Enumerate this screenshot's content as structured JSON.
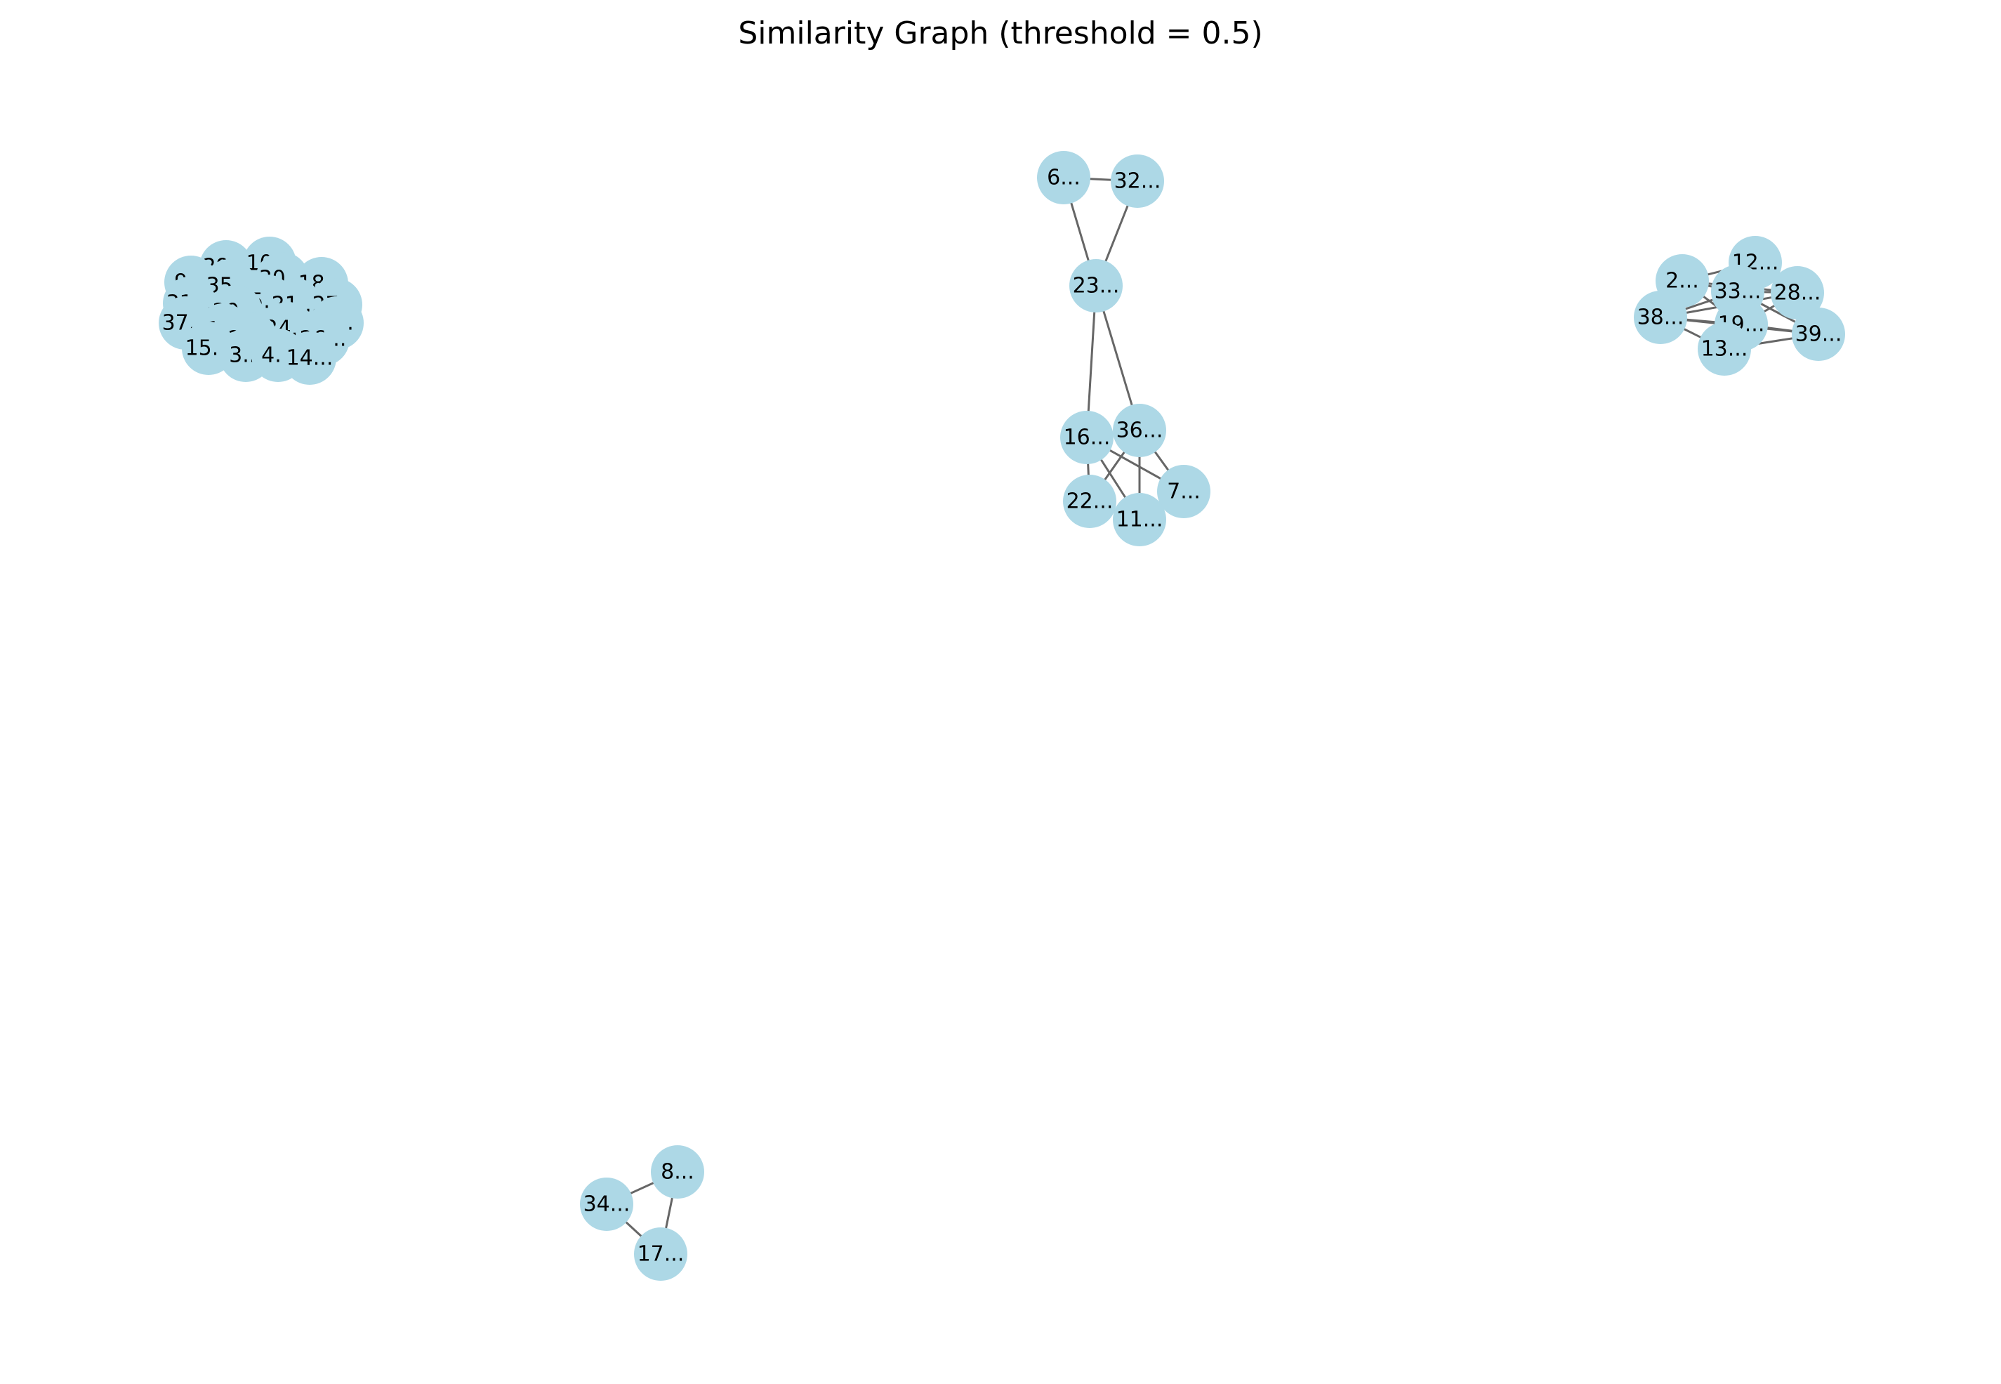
{
  "title": "Similarity Graph (threshold = 0.5)",
  "colors": {
    "node_fill": "#add8e6",
    "edge": "#666666",
    "label": "#000000",
    "background": "#ffffff"
  },
  "nodes": [
    {
      "id": "n29",
      "label": "29..."
    },
    {
      "id": "n10",
      "label": "10..."
    },
    {
      "id": "n9",
      "label": "9..."
    },
    {
      "id": "n35",
      "label": "35..."
    },
    {
      "id": "n30",
      "label": "30..."
    },
    {
      "id": "n18",
      "label": "18..."
    },
    {
      "id": "n5",
      "label": "5..."
    },
    {
      "id": "n31",
      "label": "31..."
    },
    {
      "id": "n20",
      "label": "20..."
    },
    {
      "id": "n21",
      "label": "21..."
    },
    {
      "id": "n27",
      "label": "27..."
    },
    {
      "id": "n37",
      "label": "37..."
    },
    {
      "id": "n1",
      "label": "1..."
    },
    {
      "id": "n24",
      "label": "24..."
    },
    {
      "id": "n0",
      "label": "0..."
    },
    {
      "id": "n25",
      "label": "25..."
    },
    {
      "id": "n26",
      "label": "26..."
    },
    {
      "id": "n15",
      "label": "15..."
    },
    {
      "id": "n3",
      "label": "3..."
    },
    {
      "id": "n4",
      "label": "4..."
    },
    {
      "id": "n14",
      "label": "14..."
    },
    {
      "id": "n6",
      "label": "6..."
    },
    {
      "id": "n32",
      "label": "32..."
    },
    {
      "id": "n23",
      "label": "23..."
    },
    {
      "id": "n16",
      "label": "16..."
    },
    {
      "id": "n36",
      "label": "36..."
    },
    {
      "id": "n7",
      "label": "7..."
    },
    {
      "id": "n22",
      "label": "22..."
    },
    {
      "id": "n11",
      "label": "11..."
    },
    {
      "id": "n12",
      "label": "12..."
    },
    {
      "id": "n2",
      "label": "2..."
    },
    {
      "id": "n33",
      "label": "33..."
    },
    {
      "id": "n28",
      "label": "28..."
    },
    {
      "id": "n38",
      "label": "38..."
    },
    {
      "id": "n19",
      "label": "19..."
    },
    {
      "id": "n39",
      "label": "39..."
    },
    {
      "id": "n13",
      "label": "13..."
    },
    {
      "id": "n8",
      "label": "8..."
    },
    {
      "id": "n34",
      "label": "34..."
    },
    {
      "id": "n17",
      "label": "17..."
    }
  ],
  "edges": [
    [
      "n6",
      "n32"
    ],
    [
      "n6",
      "n23"
    ],
    [
      "n32",
      "n23"
    ],
    [
      "n23",
      "n16"
    ],
    [
      "n23",
      "n36"
    ],
    [
      "n16",
      "n36"
    ],
    [
      "n16",
      "n22"
    ],
    [
      "n16",
      "n11"
    ],
    [
      "n16",
      "n7"
    ],
    [
      "n36",
      "n22"
    ],
    [
      "n36",
      "n11"
    ],
    [
      "n36",
      "n7"
    ],
    [
      "n22",
      "n11"
    ],
    [
      "n7",
      "n11"
    ],
    [
      "n12",
      "n2"
    ],
    [
      "n12",
      "n33"
    ],
    [
      "n12",
      "n28"
    ],
    [
      "n2",
      "n33"
    ],
    [
      "n2",
      "n38"
    ],
    [
      "n2",
      "n19"
    ],
    [
      "n2",
      "n28"
    ],
    [
      "n33",
      "n28"
    ],
    [
      "n33",
      "n38"
    ],
    [
      "n33",
      "n19"
    ],
    [
      "n33",
      "n13"
    ],
    [
      "n33",
      "n39"
    ],
    [
      "n28",
      "n19"
    ],
    [
      "n28",
      "n39"
    ],
    [
      "n28",
      "n38"
    ],
    [
      "n38",
      "n19"
    ],
    [
      "n38",
      "n13"
    ],
    [
      "n38",
      "n39"
    ],
    [
      "n19",
      "n13"
    ],
    [
      "n19",
      "n39"
    ],
    [
      "n13",
      "n39"
    ],
    [
      "n8",
      "n34"
    ],
    [
      "n8",
      "n17"
    ],
    [
      "n34",
      "n17"
    ]
  ]
}
